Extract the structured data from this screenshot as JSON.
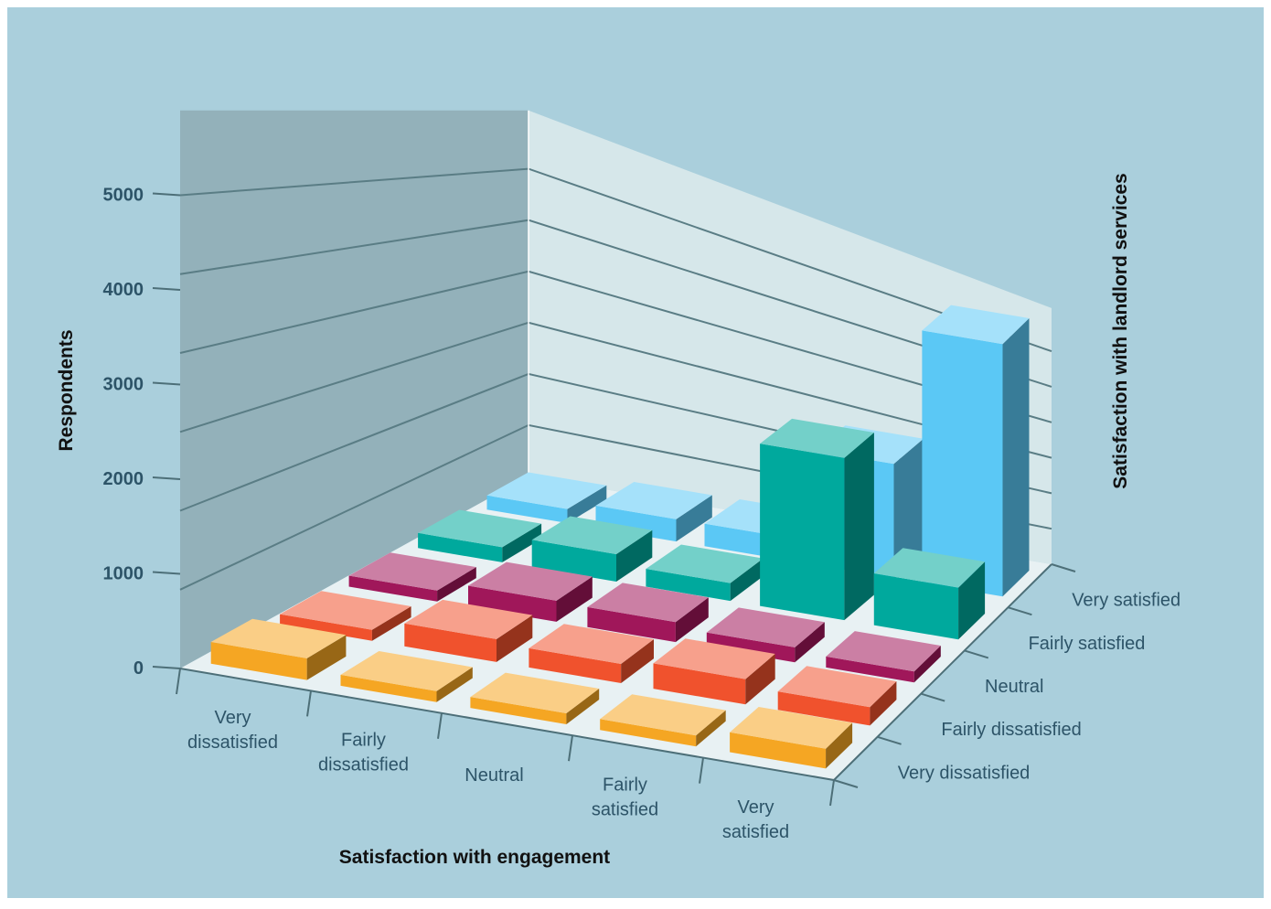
{
  "chart_data": {
    "type": "bar3d",
    "title": "",
    "xlabel": "Satisfaction with engagement",
    "ylabel": "Respondents",
    "zlabel": "Satisfaction with landlord services",
    "x_categories": [
      "Very dissatisfied",
      "Fairly dissatisfied",
      "Neutral",
      "Fairly satisfied",
      "Very satisfied"
    ],
    "z_categories": [
      "Very dissatisfied",
      "Fairly dissatisfied",
      "Neutral",
      "Fairly satisfied",
      "Very satisfied"
    ],
    "y_ticks": [
      0,
      1000,
      2000,
      3000,
      4000,
      5000
    ],
    "ylim": [
      0,
      5800
    ],
    "grid": true,
    "colors": {
      "Very dissatisfied": "#f5a623",
      "Fairly dissatisfied": "#f0522d",
      "Neutral": "#a0175a",
      "Fairly satisfied": "#00a99d",
      "Very satisfied": "#5bc8f5"
    },
    "series": [
      {
        "z": "Very dissatisfied",
        "values": [
          120,
          0,
          0,
          0,
          120
        ]
      },
      {
        "z": "Fairly dissatisfied",
        "values": [
          0,
          150,
          110,
          200,
          110
        ]
      },
      {
        "z": "Neutral",
        "values": [
          0,
          140,
          130,
          60,
          0
        ]
      },
      {
        "z": "Fairly satisfied",
        "values": [
          60,
          250,
          110,
          2600,
          750
        ]
      },
      {
        "z": "Very satisfied",
        "values": [
          50,
          190,
          210,
          2000,
          5050
        ]
      }
    ]
  }
}
